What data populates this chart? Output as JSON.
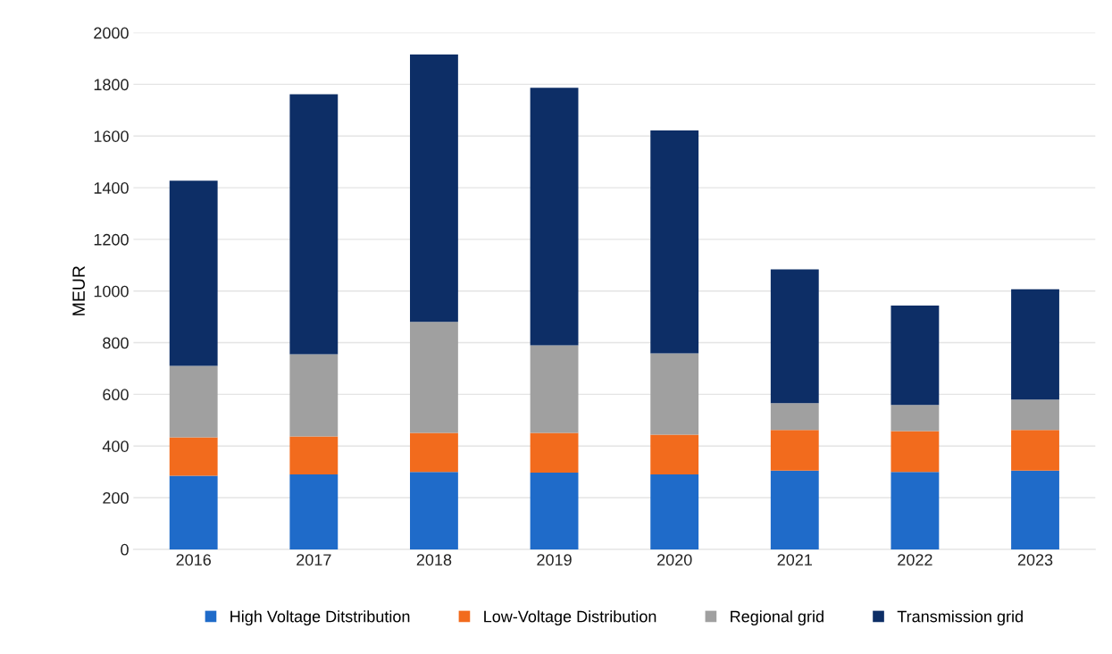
{
  "chart_data": {
    "type": "bar",
    "stacked": true,
    "ylabel": "MEUR",
    "categories": [
      "2016",
      "2017",
      "2018",
      "2019",
      "2020",
      "2021",
      "2022",
      "2023"
    ],
    "series": [
      {
        "name": "High Voltage Ditstribution",
        "color": "#1f6bc9",
        "values": [
          285,
          290,
          300,
          297,
          290,
          305,
          300,
          305
        ]
      },
      {
        "name": "Low-Voltage Distribution",
        "color": "#f26b1d",
        "values": [
          149,
          147,
          151,
          154,
          154,
          157,
          158,
          157
        ]
      },
      {
        "name": "Regional grid",
        "color": "#a0a0a0",
        "values": [
          276,
          318,
          430,
          339,
          315,
          104,
          101,
          118
        ]
      },
      {
        "name": "Transmission grid",
        "color": "#0d2e66",
        "values": [
          717,
          1007,
          1035,
          997,
          863,
          518,
          385,
          427
        ]
      }
    ],
    "ylim": [
      0,
      2000
    ],
    "yticks": [
      0,
      200,
      400,
      600,
      800,
      1000,
      1200,
      1400,
      1600,
      1800,
      2000
    ],
    "grid": "y",
    "legend": "bottom"
  }
}
